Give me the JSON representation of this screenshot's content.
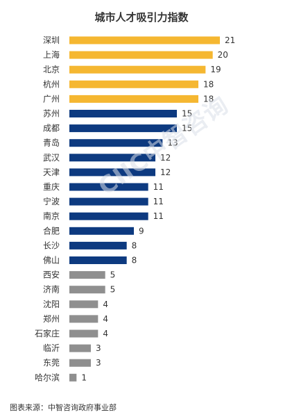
{
  "title": "城市人才吸引力指数",
  "source": "图表来源：中智咨询政府事业部",
  "watermark": "CIIC中智咨询",
  "colors": {
    "tier1": "#f5b731",
    "tier2": "#0d3a80",
    "tier3": "#8f8f8f",
    "label": "#333333"
  },
  "chart_data": {
    "type": "bar",
    "orientation": "horizontal",
    "title": "城市人才吸引力指数",
    "categories": [
      "深圳",
      "上海",
      "北京",
      "杭州",
      "广州",
      "苏州",
      "成都",
      "青岛",
      "武汉",
      "天津",
      "重庆",
      "宁波",
      "南京",
      "合肥",
      "长沙",
      "佛山",
      "西安",
      "济南",
      "沈阳",
      "郑州",
      "石家庄",
      "临沂",
      "东莞",
      "哈尔滨"
    ],
    "values": [
      21,
      20,
      19,
      18,
      18,
      15,
      15,
      13,
      12,
      12,
      11,
      11,
      11,
      9,
      8,
      8,
      5,
      5,
      4,
      4,
      4,
      3,
      3,
      1
    ],
    "color_groups": [
      "tier1",
      "tier1",
      "tier1",
      "tier1",
      "tier1",
      "tier2",
      "tier2",
      "tier2",
      "tier2",
      "tier2",
      "tier2",
      "tier2",
      "tier2",
      "tier2",
      "tier2",
      "tier2",
      "tier3",
      "tier3",
      "tier3",
      "tier3",
      "tier3",
      "tier3",
      "tier3",
      "tier3"
    ],
    "xlim": [
      0,
      21
    ],
    "grid": false,
    "legend": "none"
  }
}
